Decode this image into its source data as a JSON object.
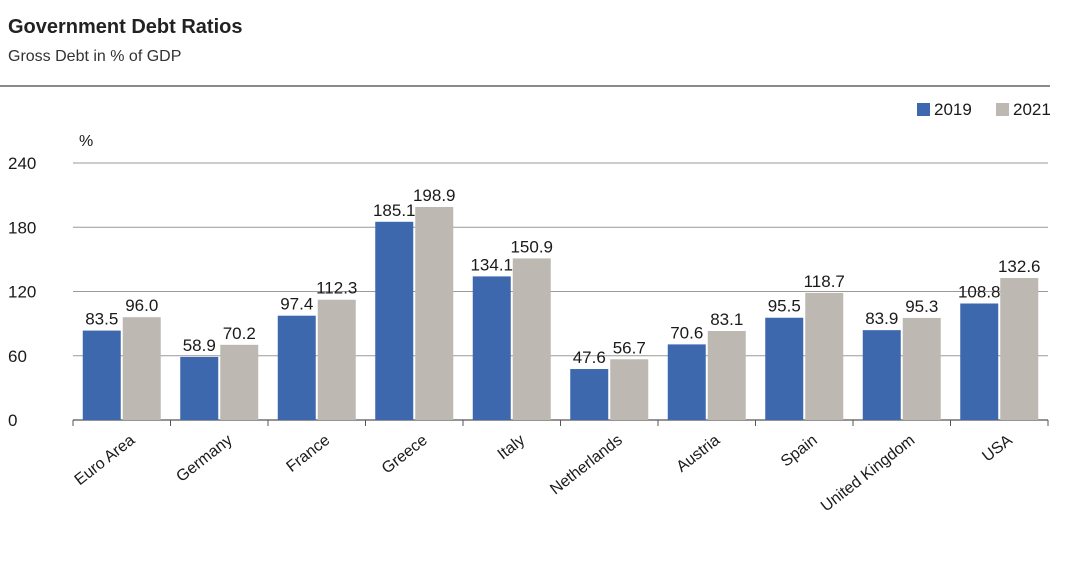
{
  "header": {
    "title": "Government Debt Ratios",
    "subtitle": "Gross Debt in % of GDP"
  },
  "chart_data": {
    "type": "bar",
    "title": "Government Debt Ratios",
    "subtitle": "Gross Debt in % of GDP",
    "xlabel": "",
    "ylabel": "%",
    "ylim": [
      0,
      240
    ],
    "yticks": [
      0,
      60,
      120,
      180,
      240
    ],
    "grid": true,
    "legend_position": "top-right",
    "categories": [
      "Euro Area",
      "Germany",
      "France",
      "Greece",
      "Italy",
      "Netherlands",
      "Austria",
      "Spain",
      "United Kingdom",
      "USA"
    ],
    "series": [
      {
        "name": "2019",
        "color": "#3d68ad",
        "values": [
          83.5,
          58.9,
          97.4,
          185.1,
          134.1,
          47.6,
          70.6,
          95.5,
          83.9,
          108.8
        ],
        "labels": [
          "83.5",
          "58.9",
          "97.4",
          "185.1",
          "134.1",
          "47.6",
          "70.6",
          "95.5",
          "83.9",
          "108.8"
        ]
      },
      {
        "name": "2021",
        "color": "#bdb8b1",
        "values": [
          96.0,
          70.2,
          112.3,
          198.9,
          150.9,
          56.7,
          83.1,
          118.7,
          95.3,
          132.6
        ],
        "labels": [
          "96.0",
          "70.2",
          "112.3",
          "198.9",
          "150.9",
          "56.7",
          "83.1",
          "118.7",
          "95.3",
          "132.6"
        ]
      }
    ]
  }
}
